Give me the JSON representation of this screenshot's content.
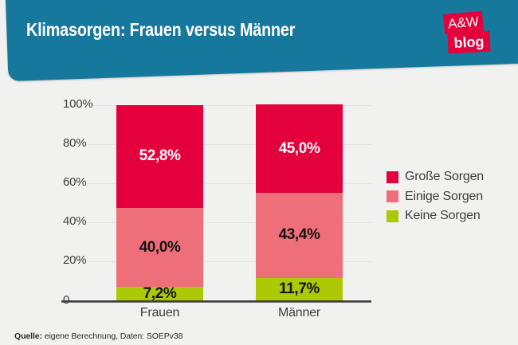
{
  "header": {
    "title": "Klimasorgen: Frauen versus Männer",
    "logo": {
      "top": "A&W",
      "bottom": "blog"
    }
  },
  "chart_data": {
    "type": "bar",
    "stacked": true,
    "title": "Klimasorgen: Frauen versus Männer",
    "categories": [
      "Frauen",
      "Männer"
    ],
    "series": [
      {
        "name": "Große Sorgen",
        "values": [
          52.8,
          45.0
        ],
        "value_labels": [
          "52,8%",
          "45,0%"
        ],
        "color": "#e4003c",
        "label_color": "#ffffff"
      },
      {
        "name": "Einige Sorgen",
        "values": [
          40.0,
          43.4
        ],
        "value_labels": [
          "40,0%",
          "43,4%"
        ],
        "color": "#ee6e79",
        "label_color": "#141414"
      },
      {
        "name": "Keine Sorgen",
        "values": [
          7.2,
          11.7
        ],
        "value_labels": [
          "7,2%",
          "11,7%"
        ],
        "color": "#adc905",
        "label_color": "#141414"
      }
    ],
    "y_ticks": [
      {
        "label": "100%",
        "value": 100
      },
      {
        "label": "80%",
        "value": 80
      },
      {
        "label": "60%",
        "value": 60
      },
      {
        "label": "40%",
        "value": 40
      },
      {
        "label": "20%",
        "value": 20
      },
      {
        "label": "0",
        "value": 0
      }
    ],
    "ylim": [
      0,
      100
    ],
    "grid": true,
    "legend_position": "right",
    "xlabel": "",
    "ylabel": ""
  },
  "footer": {
    "source_label": "Quelle:",
    "source_text": "eigene Berechnung, Daten: SOEPv38"
  },
  "colors": {
    "banner": "#17789e",
    "logo_red": "#e4003c",
    "background": "#f1f1f0",
    "gridline": "#e2e2e1",
    "axis": "#3d3d3f",
    "text": "#3f3f3f"
  }
}
